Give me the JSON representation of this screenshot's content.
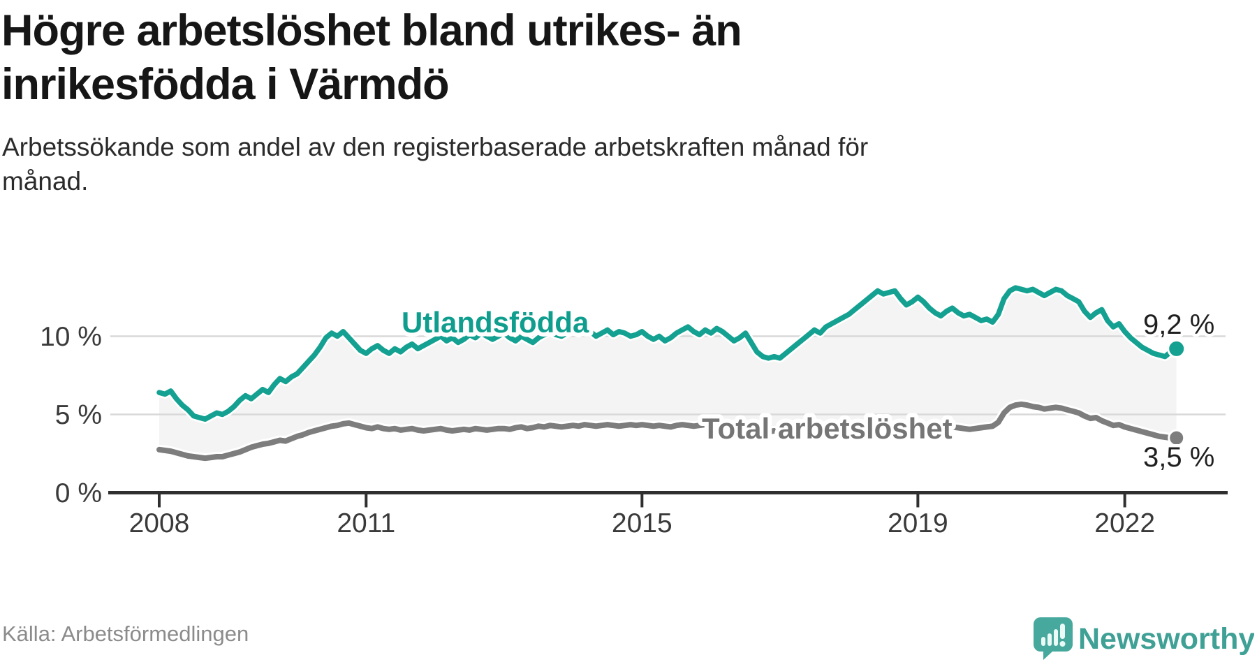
{
  "header": {
    "title_line1": "Högre arbetslöshet bland utrikes- än",
    "title_line2": "inrikesfödda i Värmdö",
    "subtitle_line1": "Arbetssökande som andel av den registerbaserade arbetskraften månad för",
    "subtitle_line2": "månad."
  },
  "footer": {
    "source": "Källa: Arbetsförmedlingen",
    "brand": "Newsworthy"
  },
  "colors": {
    "foreign_born_line": "#14a191",
    "total_line": "#7d7d7d",
    "area_fill": "#f4f4f4",
    "brand_teal": "#47a89e",
    "brand_text": "#3fa096"
  },
  "chart_data": {
    "type": "line",
    "title": "Högre arbetslöshet bland utrikes- än inrikesfödda i Värmdö",
    "subtitle": "Arbetssökande som andel av den registerbaserade arbetskraften månad för månad.",
    "source": "Källa: Arbetsförmedlingen",
    "x_unit": "month",
    "x_start": "2008-01",
    "x_end": "2022-10",
    "x_ticks": [
      2008,
      2011,
      2015,
      2019,
      2022
    ],
    "y_ticks": [
      {
        "label": "10 %",
        "value": 10
      },
      {
        "label": "5 %",
        "value": 5
      },
      {
        "label": "0 %",
        "value": 0
      }
    ],
    "ylim": [
      0,
      13.5
    ],
    "grid": true,
    "legend_position": "inline-labels",
    "series": [
      {
        "name": "Utlandsfödda",
        "color": "#14a191",
        "end_value": 9.2,
        "end_label": "9,2 %",
        "values": [
          6.4,
          6.3,
          6.5,
          6.0,
          5.6,
          5.3,
          4.9,
          4.8,
          4.7,
          4.9,
          5.1,
          5.0,
          5.2,
          5.5,
          5.9,
          6.2,
          6.0,
          6.3,
          6.6,
          6.4,
          6.9,
          7.3,
          7.1,
          7.4,
          7.6,
          8.0,
          8.4,
          8.8,
          9.3,
          9.9,
          10.2,
          10.0,
          10.3,
          9.9,
          9.5,
          9.1,
          8.9,
          9.2,
          9.4,
          9.1,
          8.9,
          9.2,
          9.0,
          9.3,
          9.5,
          9.2,
          9.4,
          9.6,
          9.8,
          10.0,
          9.7,
          9.9,
          9.6,
          9.8,
          10.1,
          9.9,
          10.2,
          10.0,
          9.8,
          10.0,
          10.2,
          9.9,
          9.7,
          10.0,
          9.8,
          9.6,
          9.9,
          10.1,
          10.3,
          10.1,
          10.0,
          10.2,
          10.4,
          10.2,
          10.5,
          10.3,
          10.0,
          10.2,
          10.4,
          10.1,
          10.3,
          10.2,
          10.0,
          10.1,
          10.3,
          10.0,
          9.8,
          10.0,
          9.7,
          9.9,
          10.2,
          10.4,
          10.6,
          10.3,
          10.1,
          10.4,
          10.2,
          10.5,
          10.3,
          10.0,
          9.7,
          9.9,
          10.2,
          9.6,
          9.0,
          8.7,
          8.6,
          8.7,
          8.6,
          8.9,
          9.2,
          9.5,
          9.8,
          10.1,
          10.4,
          10.2,
          10.6,
          10.8,
          11.0,
          11.2,
          11.4,
          11.7,
          12.0,
          12.3,
          12.6,
          12.9,
          12.7,
          12.8,
          12.9,
          12.4,
          12.0,
          12.2,
          12.5,
          12.2,
          11.8,
          11.5,
          11.3,
          11.6,
          11.8,
          11.5,
          11.3,
          11.4,
          11.2,
          11.0,
          11.1,
          10.9,
          11.4,
          12.4,
          12.9,
          13.1,
          13.0,
          12.9,
          13.0,
          12.8,
          12.6,
          12.8,
          13.0,
          12.9,
          12.6,
          12.4,
          12.2,
          11.6,
          11.2,
          11.5,
          11.7,
          11.0,
          10.6,
          10.8,
          10.3,
          9.9,
          9.6,
          9.3,
          9.1,
          8.9,
          8.8,
          8.7,
          9.0,
          9.2
        ]
      },
      {
        "name": "Total arbetslöshet",
        "color": "#7d7d7d",
        "end_value": 3.5,
        "end_label": "3,5 %",
        "values": [
          2.75,
          2.7,
          2.65,
          2.55,
          2.45,
          2.35,
          2.3,
          2.25,
          2.2,
          2.25,
          2.3,
          2.3,
          2.4,
          2.5,
          2.6,
          2.75,
          2.9,
          3.0,
          3.1,
          3.15,
          3.25,
          3.35,
          3.3,
          3.45,
          3.6,
          3.7,
          3.85,
          3.95,
          4.05,
          4.15,
          4.25,
          4.3,
          4.4,
          4.45,
          4.35,
          4.25,
          4.15,
          4.1,
          4.2,
          4.1,
          4.05,
          4.1,
          4.0,
          4.05,
          4.1,
          4.0,
          3.95,
          4.0,
          4.05,
          4.1,
          4.0,
          3.95,
          4.0,
          4.05,
          4.0,
          4.1,
          4.05,
          4.0,
          4.05,
          4.1,
          4.1,
          4.05,
          4.15,
          4.2,
          4.1,
          4.15,
          4.25,
          4.2,
          4.3,
          4.25,
          4.2,
          4.25,
          4.3,
          4.25,
          4.35,
          4.3,
          4.25,
          4.3,
          4.35,
          4.3,
          4.25,
          4.3,
          4.35,
          4.3,
          4.35,
          4.3,
          4.25,
          4.3,
          4.25,
          4.2,
          4.3,
          4.35,
          4.3,
          4.25,
          4.3,
          4.35,
          4.3,
          4.35,
          4.3,
          4.25,
          4.2,
          4.25,
          4.3,
          4.2,
          4.05,
          3.95,
          3.9,
          3.95,
          3.9,
          3.95,
          4.0,
          4.05,
          4.0,
          4.1,
          4.15,
          4.1,
          4.2,
          4.25,
          4.2,
          4.3,
          4.3,
          4.35,
          4.4,
          4.35,
          4.3,
          4.35,
          4.4,
          4.35,
          4.3,
          4.25,
          4.2,
          4.25,
          4.3,
          4.25,
          4.2,
          4.15,
          4.1,
          4.15,
          4.2,
          4.15,
          4.1,
          4.05,
          4.1,
          4.15,
          4.2,
          4.25,
          4.5,
          5.1,
          5.45,
          5.6,
          5.65,
          5.6,
          5.5,
          5.45,
          5.35,
          5.4,
          5.45,
          5.4,
          5.3,
          5.2,
          5.1,
          4.9,
          4.75,
          4.8,
          4.6,
          4.45,
          4.3,
          4.35,
          4.2,
          4.1,
          4.0,
          3.9,
          3.8,
          3.7,
          3.6,
          3.55,
          3.5,
          3.5
        ]
      }
    ]
  }
}
